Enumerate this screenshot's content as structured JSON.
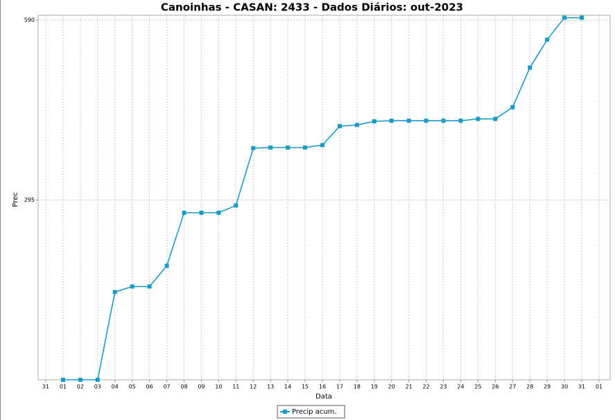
{
  "chart_data": {
    "type": "line",
    "title": "Canoinhas - CASAN: 2433 - Dados Diários: out-2023",
    "x_label": "Data",
    "y_label": "Prec",
    "categories": [
      "31",
      "01",
      "02",
      "03",
      "04",
      "05",
      "06",
      "07",
      "08",
      "09",
      "10",
      "11",
      "12",
      "13",
      "14",
      "15",
      "16",
      "17",
      "18",
      "19",
      "20",
      "21",
      "22",
      "23",
      "24",
      "25",
      "26",
      "27",
      "28",
      "29",
      "30",
      "31",
      "01"
    ],
    "series": [
      {
        "name": "Precip acum.",
        "color": "#1a9ac8",
        "values": [
          null,
          0,
          0,
          0,
          144,
          153,
          153,
          187,
          274,
          274,
          274,
          286,
          380,
          381,
          381,
          381,
          385,
          416,
          418,
          424,
          425,
          425,
          425,
          425,
          425,
          428,
          428,
          447,
          512,
          558,
          594,
          594,
          null
        ]
      }
    ],
    "ylim": [
      0,
      598
    ],
    "yticks": [
      295,
      590
    ],
    "grid": true
  }
}
